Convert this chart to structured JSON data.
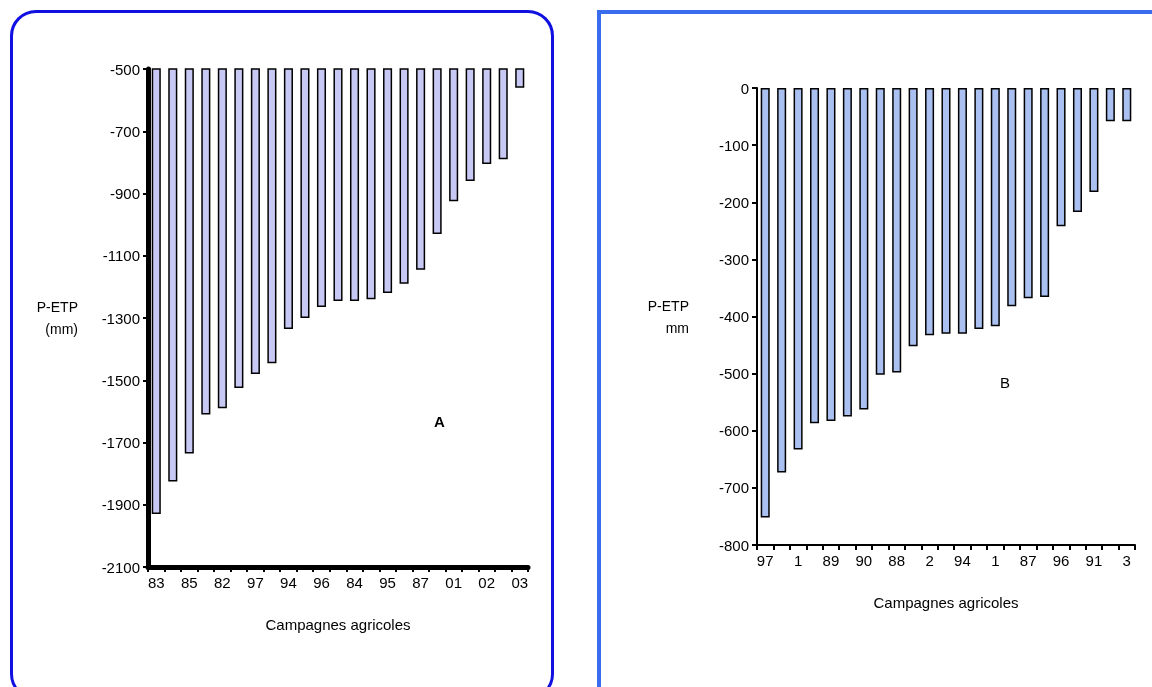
{
  "chart_data": [
    {
      "type": "bar",
      "xlabel": "Campagnes agricoles",
      "ylabel": "P-ETP (mm)",
      "annotations": [
        "A"
      ],
      "categories": [
        "83",
        null,
        "85",
        null,
        "82",
        null,
        "97",
        null,
        "94",
        null,
        "96",
        null,
        "84",
        null,
        "95",
        null,
        "87",
        null,
        "01",
        null,
        "02",
        null,
        "03"
      ],
      "values": [
        -1930,
        -1825,
        -1735,
        -1610,
        -1590,
        -1525,
        -1480,
        -1445,
        -1335,
        -1300,
        -1265,
        -1245,
        -1245,
        -1240,
        -1220,
        -1190,
        -1145,
        -1030,
        -925,
        -860,
        -805,
        -790,
        -560
      ],
      "color": "#c8c8f4",
      "ylim": [
        -2100,
        -500
      ],
      "yticks": [
        -2100,
        -1900,
        -1700,
        -1500,
        -1300,
        -1100,
        -900,
        -700,
        -500
      ],
      "grid": false
    },
    {
      "type": "bar",
      "xlabel": "Campagnes agricoles",
      "ylabel": "P-ETP mm",
      "annotations": [
        "B"
      ],
      "categories": [
        "97",
        null,
        "1",
        null,
        "89",
        null,
        "90",
        null,
        "88",
        null,
        "2",
        null,
        "94",
        null,
        "1",
        null,
        "87",
        null,
        "96",
        null,
        "91",
        null,
        "3"
      ],
      "values": [
        -752,
        -673,
        -633,
        -587,
        -583,
        -575,
        -563,
        -502,
        -498,
        -452,
        -433,
        -430,
        -430,
        -422,
        -417,
        -382,
        -368,
        -366,
        -242,
        -217,
        -182,
        -58,
        -58
      ],
      "color": "#a9c0f0",
      "ylim": [
        -800,
        0
      ],
      "yticks": [
        -800,
        -700,
        -600,
        -500,
        -400,
        -300,
        -200,
        -100,
        0
      ],
      "grid": false
    }
  ]
}
